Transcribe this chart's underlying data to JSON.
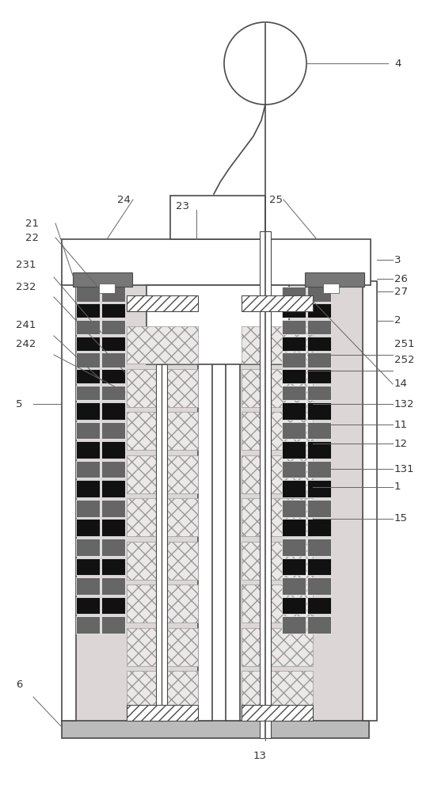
{
  "bg_color": "#ffffff",
  "line_color": "#4a4a4a",
  "light_gray": "#c8c8c8",
  "label_color": "#333333"
}
